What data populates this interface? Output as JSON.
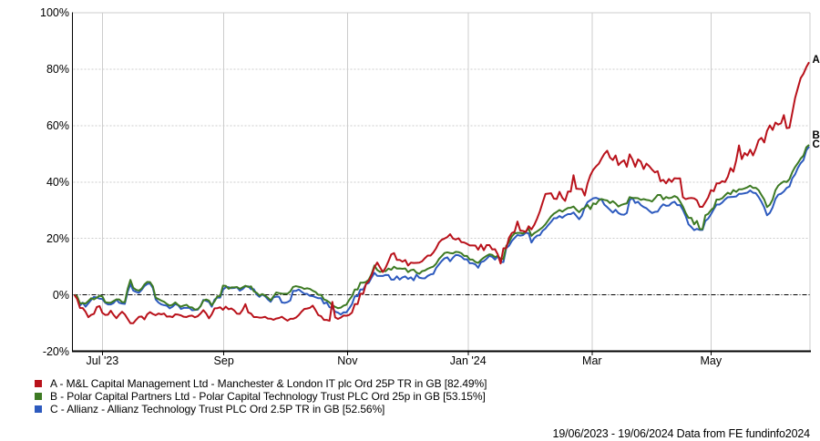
{
  "chart_data": {
    "type": "line",
    "title": "",
    "period_label": "19/06/2023 - 19/06/2024",
    "source_label": "Data from FE fundinfo2024",
    "footer_text": "19/06/2023 - 19/06/2024 Data from FE fundinfo2024",
    "ylim": [
      -20,
      100
    ],
    "legend_position": "bottom-left",
    "grid": {
      "h_dotted_values": [
        20,
        40,
        60,
        80
      ],
      "zero_line_value": 0,
      "grid_color": "#cccccc",
      "zero_line_color": "#000000",
      "axis_color": "#000000"
    },
    "y_ticks": [
      {
        "label": "100%",
        "value": 100
      },
      {
        "label": "80%",
        "value": 80
      },
      {
        "label": "60%",
        "value": 60
      },
      {
        "label": "40%",
        "value": 40
      },
      {
        "label": "20%",
        "value": 20
      },
      {
        "label": "0%",
        "value": 0
      },
      {
        "label": "-20%",
        "value": -20
      }
    ],
    "x_ticks": [
      {
        "label": "Jul '23",
        "i": 10.0
      },
      {
        "label": "Sep",
        "i": 53.3
      },
      {
        "label": "Nov",
        "i": 97.4
      },
      {
        "label": "Jan '24",
        "i": 140.4
      },
      {
        "label": "Mar",
        "i": 184.6
      },
      {
        "label": "May",
        "i": 227.0
      }
    ],
    "n_points": 263,
    "series": [
      {
        "id": "A",
        "letter": "A",
        "legend": "A - M&L Capital Management Ltd - Manchester & London IT plc Ord 25P TR in GB [82.49%]",
        "name": "M&L Capital Management Ltd - Manchester & London IT plc Ord 25P TR in GB",
        "final_pct": 82.49,
        "color": "#b9121b",
        "values": [
          0.0,
          -1.5,
          -4.64,
          -4.7,
          -6,
          -7.93,
          -7.1,
          -6.73,
          -4.33,
          -4,
          -6.38,
          -7.12,
          -7.03,
          -5.63,
          -7.12,
          -8.3,
          -7.01,
          -6,
          -6.94,
          -8.5,
          -10.06,
          -10.07,
          -8.86,
          -7.81,
          -7.69,
          -8.69,
          -6.89,
          -6.13,
          -6.8,
          -7.22,
          -6.63,
          -6.92,
          -6.64,
          -7.74,
          -7.65,
          -7.89,
          -6.92,
          -7.01,
          -7.28,
          -7.78,
          -7.87,
          -7.47,
          -7.38,
          -7.96,
          -7.57,
          -6.63,
          -5.44,
          -6.6,
          -8.34,
          -6.91,
          -4.8,
          -4.72,
          -4.41,
          -5.29,
          -4.19,
          -5.11,
          -4.82,
          -5.53,
          -6.67,
          -6.74,
          -5.34,
          -3.3,
          -6.2,
          -6.65,
          -7.89,
          -7.87,
          -8.07,
          -8.03,
          -7.81,
          -8.41,
          -8.44,
          -8.86,
          -8.4,
          -8.21,
          -7.77,
          -8.5,
          -9.17,
          -8.5,
          -8.5,
          -8.08,
          -7.2,
          -5.98,
          -5.03,
          -4.86,
          -4.61,
          -3.83,
          -5.4,
          -7.2,
          -7.59,
          -8.9,
          -8.9,
          -9.2,
          -2.5,
          -8.0,
          -8.54,
          -8.07,
          -7.34,
          -7.41,
          -7.13,
          -6.3,
          -3.3,
          -3.3,
          0.4,
          0.4,
          3.89,
          4.9,
          6.9,
          9.7,
          11.45,
          9.72,
          8.08,
          9.62,
          11.9,
          14.32,
          14.79,
          12.4,
          12.4,
          11.76,
          12.34,
          10.4,
          11.4,
          11.28,
          11.34,
          11.4,
          11.9,
          13.0,
          13.9,
          13.9,
          15.0,
          16.5,
          18.5,
          19.5,
          19.96,
          20.47,
          21.5,
          20.0,
          19.6,
          20.05,
          18.67,
          18.57,
          18.09,
          17.5,
          17.5,
          17.48,
          16.0,
          17.8,
          15.82,
          17.63,
          17.65,
          16.11,
          16.18,
          14.3,
          11.1,
          16.5,
          16.5,
          20.2,
          21.91,
          22.4,
          26.0,
          22.8,
          22.65,
          22.3,
          24.3,
          23.2,
          24.8,
          27.0,
          29.6,
          32.8,
          35.77,
          35.88,
          36.0,
          34.1,
          34.0,
          36.5,
          34.4,
          33.3,
          36.6,
          36.6,
          42.4,
          37.6,
          37.53,
          37.5,
          35.2,
          39.5,
          42.36,
          44.3,
          45.5,
          46.47,
          48.3,
          50.0,
          51.1,
          48.69,
          47.77,
          49.4,
          46.0,
          47.03,
          47.7,
          45.4,
          49.8,
          48.01,
          45.4,
          48.01,
          47.2,
          44.61,
          46.52,
          45.6,
          44.39,
          43.4,
          43.83,
          40.3,
          40.76,
          39.52,
          41.07,
          40.03,
          41.34,
          41.24,
          41.3,
          34.6,
          33.93,
          34.22,
          34.33,
          34.2,
          33.5,
          31.2,
          31.2,
          32.84,
          34.5,
          37.13,
          36.73,
          39.5,
          39.5,
          40.3,
          39.99,
          41.82,
          44.92,
          43.66,
          47.64,
          52.95,
          48.11,
          50.28,
          49.39,
          51.46,
          49.42,
          51.79,
          54.82,
          55.66,
          54.01,
          58.12,
          60.07,
          58.45,
          61.07,
          60.36,
          60.8,
          63.7,
          59.1,
          59.27,
          64.5,
          69.75,
          73.33,
          76.84,
          78.38,
          80.69,
          82.49
        ]
      },
      {
        "id": "B",
        "letter": "B",
        "legend": "B - Polar Capital Partners Ltd - Polar Capital Technology Trust PLC Ord 25p in GB [53.15%]",
        "name": "Polar Capital Partners Ltd - Polar Capital Technology Trust PLC Ord 25p in GB",
        "final_pct": 53.15,
        "color": "#3d7a23",
        "values": [
          0.0,
          -0.5,
          -3.0,
          -2.95,
          -3.08,
          -2.2,
          -1.2,
          -1.61,
          -0.99,
          -0.31,
          -0.58,
          -2.58,
          -2.8,
          -2.8,
          -2.2,
          -1.61,
          -1.63,
          -2.55,
          -2.6,
          2.07,
          5.3,
          2.5,
          1.79,
          1.5,
          2.19,
          3.69,
          4.58,
          4.5,
          3.0,
          -1.0,
          -1.52,
          -2.04,
          -2.45,
          -3.24,
          -3.85,
          -3.5,
          -2.69,
          -3.6,
          -4.2,
          -3.78,
          -3.54,
          -4.37,
          -4.45,
          -5.27,
          -5.07,
          -4.08,
          -2.02,
          -1.65,
          -2.05,
          -3.7,
          -2.31,
          -0.5,
          -0.5,
          3.24,
          3.19,
          2.13,
          2.67,
          2.65,
          2.76,
          2.13,
          2.67,
          3.2,
          2.8,
          3.0,
          1.23,
          0.73,
          -0.24,
          0.25,
          -0.24,
          -1.01,
          -1.97,
          -0.55,
          0.85,
          0.6,
          0.45,
          0.4,
          0.4,
          1.2,
          2.8,
          3.08,
          2.86,
          2.61,
          2.1,
          2.32,
          2.11,
          1.46,
          1.0,
          0.0,
          0.0,
          -1.6,
          -2.0,
          -2.7,
          -3.7,
          -4.24,
          -4.75,
          -4.54,
          -3.83,
          -3.5,
          -1.81,
          -0.5,
          1.9,
          1.9,
          4.3,
          4.3,
          4.57,
          5.4,
          7.43,
          10.4,
          8.81,
          8.12,
          8.45,
          8.36,
          9.3,
          8.9,
          9.97,
          9.32,
          9.34,
          9.22,
          9.34,
          8.04,
          8.76,
          8.94,
          7.88,
          7.47,
          8.38,
          8.62,
          9.23,
          9.65,
          10.01,
          11.01,
          12.68,
          13.72,
          14.83,
          15.07,
          14.81,
          14.67,
          15.25,
          15.13,
          14.76,
          13.8,
          13.8,
          12.5,
          12.5,
          11.68,
          11.32,
          12.36,
          13.17,
          13.83,
          14.35,
          14.15,
          13.39,
          13.82,
          12.7,
          12.7,
          17.34,
          18.71,
          20.7,
          21.8,
          21.95,
          21.95,
          21.75,
          22.5,
          23.4,
          20.93,
          21.87,
          22.5,
          23.2,
          23.97,
          25.03,
          26.45,
          27.8,
          28.78,
          29.39,
          30.08,
          29.5,
          30.2,
          30.8,
          30.89,
          31.3,
          30.2,
          29.3,
          30.38,
          30.83,
          31.87,
          30.39,
          32.4,
          32.14,
          33.48,
          33.98,
          33.64,
          33.45,
          32.53,
          33.19,
          32.41,
          31.3,
          31.86,
          32.2,
          32.4,
          34.64,
          34.31,
          34.33,
          34.25,
          33.65,
          33.95,
          33.66,
          33.5,
          33.09,
          34.2,
          35.39,
          35.4,
          33.8,
          34.68,
          34.26,
          34.45,
          35.02,
          34.53,
          33.07,
          31.3,
          29.0,
          27.3,
          27.3,
          25.0,
          26.2,
          23.3,
          23.3,
          28.19,
          28.7,
          30.01,
          30.87,
          33.8,
          33.8,
          34.22,
          35.27,
          36.2,
          35.68,
          37.14,
          36.5,
          37.4,
          37.4,
          37.71,
          38.13,
          38.7,
          37.9,
          37.94,
          37.08,
          35.4,
          33.8,
          31.11,
          31.93,
          33.8,
          37.1,
          38.7,
          39.56,
          40.21,
          40.0,
          41.0,
          43.49,
          45.32,
          46.7,
          48.3,
          49.38,
          52.3,
          53.15
        ]
      },
      {
        "id": "C",
        "letter": "C",
        "legend": "C - Allianz - Allianz Technology Trust PLC Ord 2.5P TR in GB [52.56%]",
        "name": "Allianz - Allianz Technology Trust PLC Ord 2.5P TR in GB",
        "final_pct": 52.56,
        "color": "#2d5abe",
        "values": [
          0.0,
          -0.8,
          -3.8,
          -2.77,
          -4.2,
          -3.0,
          -1.8,
          -0.73,
          -0.95,
          -1.36,
          -1.51,
          -2.8,
          -3.4,
          -3.4,
          -2.9,
          -1.66,
          -2.83,
          -3.08,
          -3.2,
          0.99,
          3.8,
          1.5,
          1.06,
          0.7,
          1.74,
          3.12,
          3.84,
          4.0,
          2.4,
          -1.6,
          -2.74,
          -3.37,
          -3.67,
          -3.85,
          -4.8,
          -4.2,
          -3.3,
          -3.66,
          -5.0,
          -4.62,
          -4.62,
          -4.58,
          -5.46,
          -5.33,
          -5.26,
          -3.98,
          -1.81,
          -2.14,
          -2.52,
          -4.2,
          -1.7,
          -1.0,
          -1.0,
          1.87,
          2.68,
          2.73,
          2.35,
          2.43,
          2.71,
          1.49,
          2.03,
          3.0,
          3.0,
          2.0,
          2.0,
          0.16,
          -0.71,
          0.15,
          -0.5,
          -1.61,
          -2.46,
          -0.9,
          -0.62,
          -0.7,
          -2.73,
          -2.85,
          -2.58,
          -2.0,
          1.4,
          1.38,
          1.9,
          1.11,
          0.4,
          0.34,
          -0.35,
          -0.44,
          -0.83,
          -1.2,
          -1.2,
          -3.1,
          -2.66,
          -4.4,
          -4.64,
          -5.99,
          -6.29,
          -6.99,
          -6.2,
          -6.22,
          -4.83,
          -3.3,
          -0.5,
          -0.5,
          1.9,
          1.9,
          3.77,
          4.25,
          6.14,
          7.8,
          6.73,
          6.67,
          6.68,
          7.06,
          7.01,
          5.4,
          5.4,
          6.56,
          5.4,
          6.2,
          6.53,
          5.64,
          6.21,
          5.13,
          7.17,
          6.07,
          5.89,
          5.86,
          6.71,
          7.23,
          7.4,
          9.52,
          10.77,
          11.98,
          12.94,
          13.3,
          11.9,
          13.17,
          14.13,
          14.02,
          13.54,
          12.6,
          12.6,
          11.2,
          11.2,
          10.8,
          9.6,
          11.58,
          11.92,
          12.8,
          13.83,
          13.47,
          12.5,
          13.7,
          11.6,
          11.6,
          16.54,
          17.39,
          19.1,
          20.2,
          21.2,
          20.99,
          21.19,
          22.02,
          21.8,
          18.53,
          20.11,
          21.0,
          21.15,
          22.75,
          23.51,
          24.76,
          25.87,
          27.17,
          27.18,
          27.94,
          27.33,
          28.1,
          28.6,
          28.6,
          29.2,
          28.0,
          26.8,
          28.1,
          31.0,
          32.87,
          33.57,
          34.21,
          34.4,
          34.0,
          33.8,
          31.97,
          31.1,
          30.13,
          29.15,
          30.15,
          29.0,
          28.49,
          28.39,
          29.0,
          33.55,
          34.37,
          32.57,
          33.0,
          31.84,
          31.14,
          30.69,
          29.76,
          29.0,
          29.41,
          29.5,
          31.04,
          32.09,
          31.58,
          31.65,
          32.58,
          33.01,
          31.8,
          31.8,
          30.1,
          27.9,
          25.01,
          24.05,
          22.93,
          23.4,
          23.0,
          23.0,
          26.2,
          27.0,
          28.56,
          30.32,
          32.0,
          32.0,
          32.72,
          33.81,
          34.6,
          34.68,
          34.76,
          34.88,
          35.8,
          35.82,
          35.99,
          36.22,
          37.0,
          36.2,
          36.03,
          34.68,
          33.0,
          31.0,
          28.2,
          29.04,
          31.0,
          34.0,
          35.49,
          35.84,
          36.64,
          37.9,
          38.41,
          41.3,
          42.7,
          45.0,
          46.7,
          47.77,
          51.2,
          52.56
        ]
      }
    ]
  }
}
